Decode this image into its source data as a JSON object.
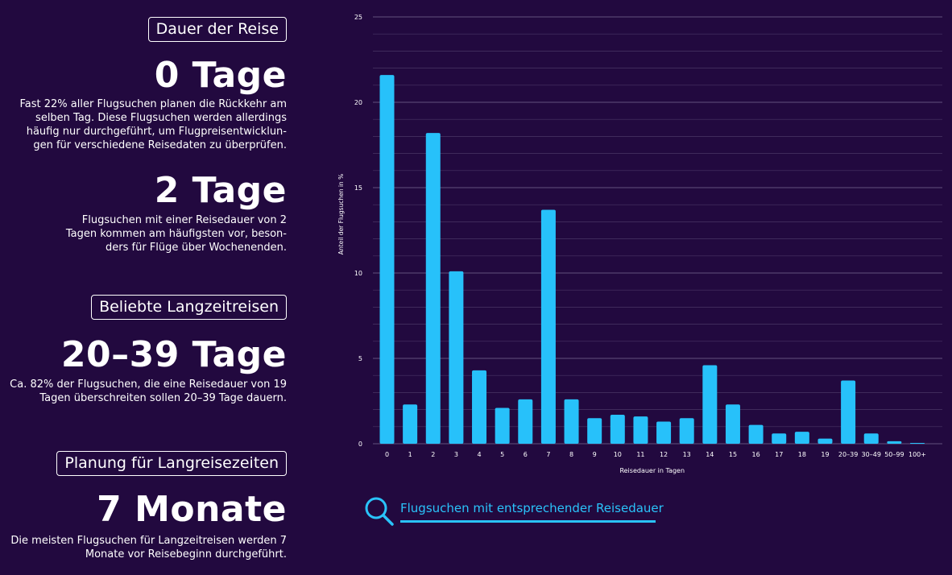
{
  "left": {
    "badge1": "Dauer der Reise",
    "stat1": "0 Tage",
    "text1": [
      "Fast 22% aller Flugsuchen planen die Rückkehr am",
      "selben Tag. Diese Flugsuchen werden allerdings",
      "häufig nur durchgeführt, um Flugpreisentwicklun-",
      "gen für verschiedene Reisedaten zu überprüfen."
    ],
    "stat2": "2 Tage",
    "text2": [
      "Flugsuchen mit einer Reisedauer von 2",
      "Tagen kommen am häufigsten vor, beson-",
      "ders für Flüge über Wochenenden."
    ],
    "badge2": "Beliebte Langzeitreisen",
    "stat3": "20–39 Tage",
    "text3": [
      "Ca. 82% der Flugsuchen, die eine Reisedauer von 19",
      "Tagen überschreiten sollen 20–39 Tage dauern."
    ],
    "badge3": "Planung für Langreisezeiten",
    "stat4": "7 Monate",
    "text4": [
      "Die meisten Flugsuchen für Langzeitreisen werden 7",
      "Monate vor Reisebeginn durchgeführt."
    ]
  },
  "legend": {
    "label": "Flugsuchen mit entsprechender Reisedauer",
    "icon": "search-icon"
  },
  "colors": {
    "background": "#22093f",
    "bar": "#27c1fa",
    "accent": "#2ac3fa",
    "grid": "#6a5a85"
  },
  "chart_data": {
    "type": "bar",
    "categories": [
      "0",
      "1",
      "2",
      "3",
      "4",
      "5",
      "6",
      "7",
      "8",
      "9",
      "10",
      "11",
      "12",
      "13",
      "14",
      "15",
      "16",
      "17",
      "18",
      "19",
      "20–39",
      "30–49",
      "50–99",
      "100+"
    ],
    "values": [
      21.6,
      2.3,
      18.2,
      10.1,
      4.3,
      2.1,
      2.6,
      13.7,
      2.6,
      1.5,
      1.7,
      1.6,
      1.3,
      1.5,
      4.6,
      2.3,
      1.1,
      0.6,
      0.7,
      0.3,
      3.7,
      0.6,
      0.15,
      0.05
    ],
    "xlabel": "Reisedauer in Tagen",
    "ylabel": "Anteil der Flugsuchen in %",
    "ylim": [
      0,
      25
    ],
    "yticks": [
      0,
      5,
      10,
      15,
      20,
      25
    ],
    "grid": true
  }
}
